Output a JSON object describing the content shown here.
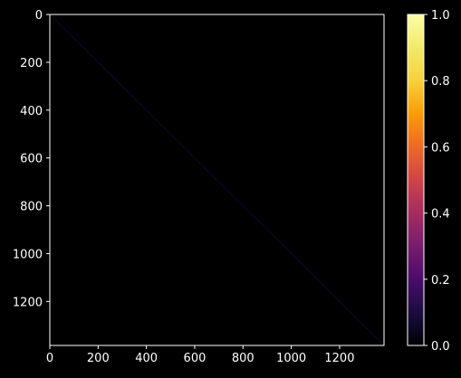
{
  "chart_data": {
    "type": "heatmap",
    "title": "",
    "xlabel": "",
    "ylabel": "",
    "xlim": [
      0,
      1384
    ],
    "ylim": [
      1384,
      0
    ],
    "xticks": [
      0,
      200,
      400,
      600,
      800,
      1000,
      1200
    ],
    "yticks": [
      0,
      200,
      400,
      600,
      800,
      1000,
      1200
    ],
    "matrix_description": "identity",
    "diagonal_value": 1,
    "off_diagonal_value": 0,
    "grid": false,
    "colorbar": {
      "position": "right",
      "colormap": "inferno",
      "min": 0,
      "max": 1,
      "ticks": [
        "0.0",
        "0.2",
        "0.4",
        "0.6",
        "0.8",
        "1.0"
      ]
    }
  },
  "colors": {
    "background": "#000000",
    "axes_face": "#000000",
    "spine": "#ffffff",
    "text": "#ffffff",
    "diagonal": "#1b0c41"
  }
}
